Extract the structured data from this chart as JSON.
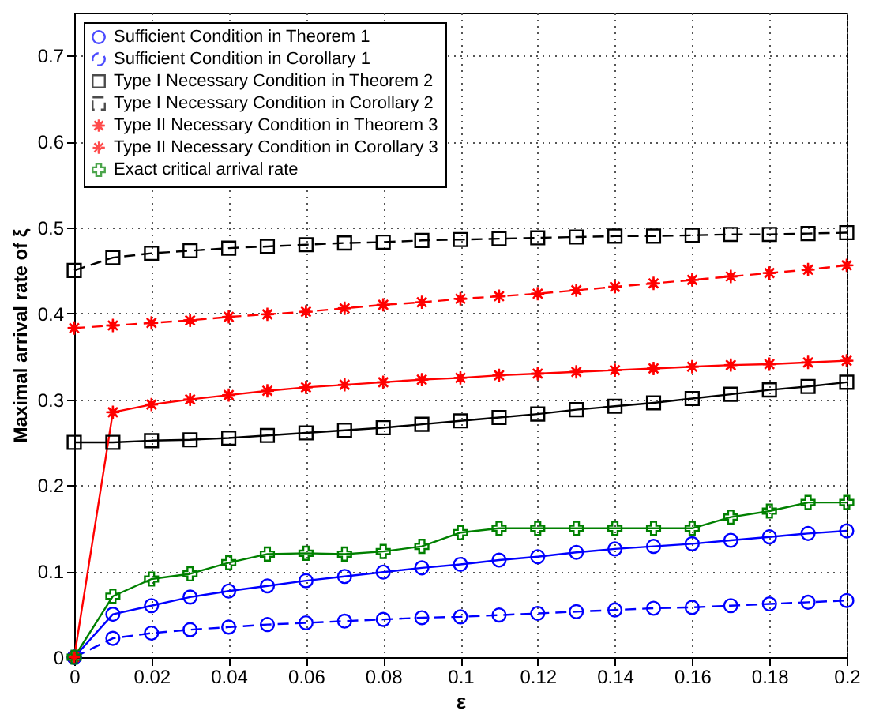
{
  "chart_data": {
    "type": "line",
    "xlabel": "ε",
    "ylabel": "Maximal arrival rate of ξ",
    "x": [
      0,
      0.01,
      0.02,
      0.03,
      0.04,
      0.05,
      0.06,
      0.07,
      0.08,
      0.09,
      0.1,
      0.11,
      0.12,
      0.13,
      0.14,
      0.15,
      0.16,
      0.17,
      0.18,
      0.19,
      0.2
    ],
    "series": [
      {
        "name": "Sufficient Condition in Theorem 1",
        "color": "#0000ff",
        "marker": "circle",
        "line_style": "solid",
        "values": [
          0,
          0.05,
          0.06,
          0.07,
          0.077,
          0.083,
          0.089,
          0.094,
          0.099,
          0.104,
          0.108,
          0.113,
          0.117,
          0.122,
          0.126,
          0.129,
          0.132,
          0.136,
          0.14,
          0.144,
          0.147
        ]
      },
      {
        "name": "Sufficient Condition in Corollary 1",
        "color": "#0000ff",
        "marker": "circle",
        "line_style": "dashed",
        "values": [
          0,
          0.022,
          0.028,
          0.032,
          0.035,
          0.038,
          0.04,
          0.042,
          0.044,
          0.046,
          0.047,
          0.049,
          0.051,
          0.053,
          0.055,
          0.057,
          0.058,
          0.06,
          0.062,
          0.064,
          0.066
        ]
      },
      {
        "name": "Type I Necessary Condition in Theorem 2",
        "color": "#000000",
        "marker": "square",
        "line_style": "solid",
        "values": [
          0.25,
          0.25,
          0.252,
          0.253,
          0.255,
          0.258,
          0.261,
          0.264,
          0.267,
          0.271,
          0.275,
          0.279,
          0.283,
          0.288,
          0.292,
          0.296,
          0.301,
          0.306,
          0.311,
          0.315,
          0.32
        ]
      },
      {
        "name": "Type I Necessary Condition in Corollary 2",
        "color": "#000000",
        "marker": "square",
        "line_style": "dashed",
        "values": [
          0.45,
          0.465,
          0.47,
          0.473,
          0.476,
          0.478,
          0.48,
          0.482,
          0.483,
          0.485,
          0.486,
          0.487,
          0.488,
          0.489,
          0.49,
          0.49,
          0.491,
          0.492,
          0.492,
          0.493,
          0.494
        ]
      },
      {
        "name": "Type II Necessary Condition in Theorem 3",
        "color": "#ff0000",
        "marker": "star",
        "line_style": "solid",
        "values": [
          0,
          0.285,
          0.294,
          0.3,
          0.305,
          0.31,
          0.314,
          0.317,
          0.32,
          0.323,
          0.325,
          0.328,
          0.33,
          0.332,
          0.334,
          0.336,
          0.338,
          0.34,
          0.341,
          0.343,
          0.345
        ]
      },
      {
        "name": "Type II Necessary Condition in Corollary 3",
        "color": "#ff0000",
        "marker": "star",
        "line_style": "dashed",
        "values": [
          0.383,
          0.386,
          0.389,
          0.392,
          0.396,
          0.399,
          0.402,
          0.406,
          0.41,
          0.413,
          0.417,
          0.42,
          0.423,
          0.427,
          0.431,
          0.435,
          0.439,
          0.443,
          0.447,
          0.451,
          0.456
        ]
      },
      {
        "name": "Exact critical arrival rate",
        "color": "#008000",
        "marker": "cross",
        "line_style": "solid",
        "values": [
          0,
          0.071,
          0.091,
          0.097,
          0.11,
          0.12,
          0.121,
          0.12,
          0.123,
          0.129,
          0.145,
          0.15,
          0.15,
          0.15,
          0.15,
          0.15,
          0.15,
          0.163,
          0.17,
          0.18,
          0.18
        ]
      }
    ],
    "xlim": [
      0,
      0.2
    ],
    "xticks": [
      0,
      0.02,
      0.04,
      0.06,
      0.08,
      0.1,
      0.12,
      0.14,
      0.16,
      0.18,
      0.2
    ],
    "ylim": [
      0,
      0.75
    ],
    "yticks": [
      0,
      0.1,
      0.2,
      0.3,
      0.4,
      0.5,
      0.6,
      0.7
    ],
    "grid": true,
    "legend": "top left"
  }
}
